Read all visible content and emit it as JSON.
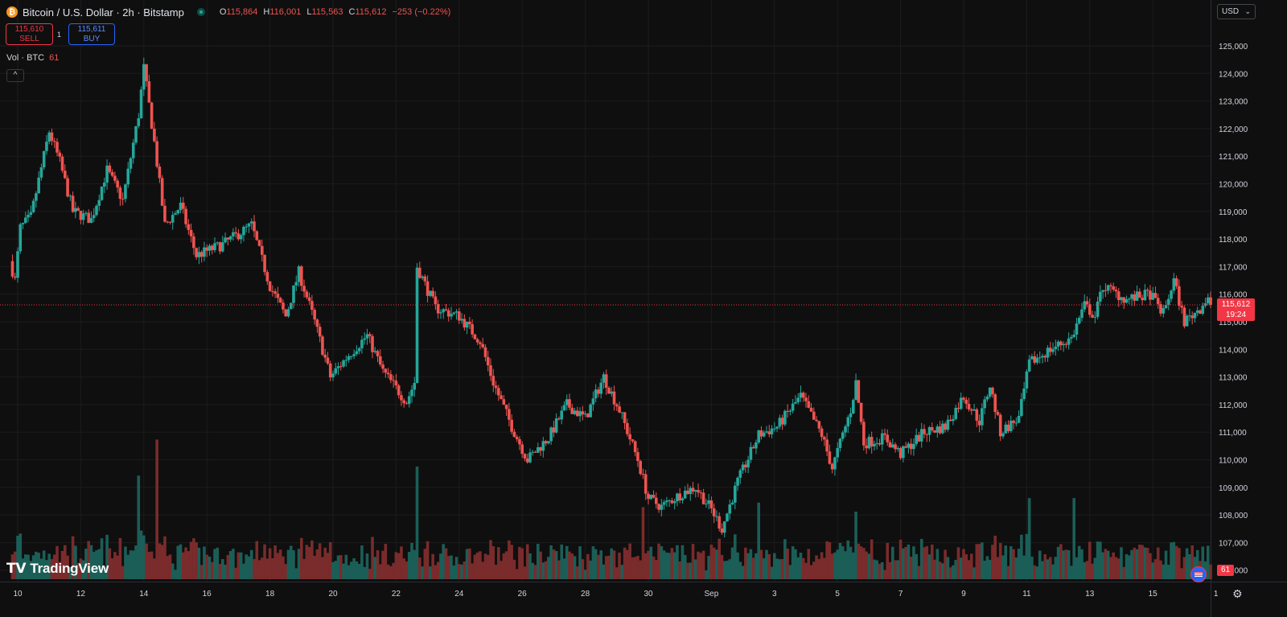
{
  "header": {
    "coin_symbol": "₿",
    "title": "Bitcoin / U.S. Dollar · 2h · Bitstamp",
    "ohlc": {
      "o_label": "O",
      "o": "115,864",
      "h_label": "H",
      "h": "116,001",
      "l_label": "L",
      "l": "115,563",
      "c_label": "C",
      "c": "115,612",
      "change": "−253 (−0.22%)"
    }
  },
  "trade": {
    "sell_price": "115,610",
    "sell_label": "SELL",
    "spread": "1",
    "buy_price": "115,611",
    "buy_label": "BUY"
  },
  "volume_legend": {
    "label": "Vol · BTC",
    "value": "61"
  },
  "collapse_icon": "^",
  "currency": {
    "label": "USD",
    "chevron": "⌄"
  },
  "logo": {
    "mark": "𝗧𝗩",
    "text": "TradingView"
  },
  "last_price": {
    "price": "115,612",
    "countdown": "19:24"
  },
  "volume_tag": "61",
  "settings_icon": "⚙",
  "colors": {
    "up": "#26a69a",
    "down": "#ef5350",
    "up_volume": "#1b5e57",
    "down_volume": "#7a2b2b",
    "grid": "#1c1c1c",
    "last_price_line": "#f23645"
  },
  "chart_data": {
    "type": "candlestick",
    "interval": "2h",
    "ylim": [
      106000,
      125700
    ],
    "y_ticks": [
      "125,000",
      "124,000",
      "123,000",
      "122,000",
      "121,000",
      "120,000",
      "119,000",
      "118,000",
      "117,000",
      "116,000",
      "115,000",
      "114,000",
      "113,000",
      "112,000",
      "111,000",
      "110,000",
      "109,000",
      "108,000",
      "107,000",
      "106,000"
    ],
    "x_ticks": [
      "10",
      "12",
      "14",
      "16",
      "18",
      "20",
      "22",
      "24",
      "26",
      "28",
      "30",
      "Sep",
      "3",
      "5",
      "7",
      "9",
      "11",
      "13",
      "15",
      "1"
    ],
    "last_price": 115612,
    "close_path": [
      {
        "date": "Aug 9 18:00",
        "close": 117200
      },
      {
        "date": "Aug 9 22:00",
        "close": 116500
      },
      {
        "date": "Aug 10 02:00",
        "close": 118400
      },
      {
        "date": "Aug 10 10:00",
        "close": 118800
      },
      {
        "date": "Aug 11 00:00",
        "close": 121900
      },
      {
        "date": "Aug 11 08:00",
        "close": 120800
      },
      {
        "date": "Aug 11 18:00",
        "close": 119000
      },
      {
        "date": "Aug 12 08:00",
        "close": 118700
      },
      {
        "date": "Aug 12 20:00",
        "close": 120500
      },
      {
        "date": "Aug 13 08:00",
        "close": 119400
      },
      {
        "date": "Aug 13 20:00",
        "close": 122500
      },
      {
        "date": "Aug 14 00:00",
        "close": 124200
      },
      {
        "date": "Aug 14 08:00",
        "close": 121500
      },
      {
        "date": "Aug 14 16:00",
        "close": 118500
      },
      {
        "date": "Aug 15 04:00",
        "close": 119200
      },
      {
        "date": "Aug 15 16:00",
        "close": 117400
      },
      {
        "date": "Aug 16 12:00",
        "close": 117800
      },
      {
        "date": "Aug 17 10:00",
        "close": 118500
      },
      {
        "date": "Aug 18 00:00",
        "close": 116300
      },
      {
        "date": "Aug 18 12:00",
        "close": 115200
      },
      {
        "date": "Aug 18 22:00",
        "close": 116800
      },
      {
        "date": "Aug 19 10:00",
        "close": 115000
      },
      {
        "date": "Aug 19 22:00",
        "close": 113000
      },
      {
        "date": "Aug 20 12:00",
        "close": 113800
      },
      {
        "date": "Aug 21 02:00",
        "close": 114500
      },
      {
        "date": "Aug 21 14:00",
        "close": 113200
      },
      {
        "date": "Aug 22 08:00",
        "close": 112100
      },
      {
        "date": "Aug 22 14:00",
        "close": 112800
      },
      {
        "date": "Aug 22 16:00",
        "close": 117000
      },
      {
        "date": "Aug 23 06:00",
        "close": 115500
      },
      {
        "date": "Aug 24 00:00",
        "close": 115200
      },
      {
        "date": "Aug 24 16:00",
        "close": 114300
      },
      {
        "date": "Aug 25 02:00",
        "close": 112800
      },
      {
        "date": "Aug 25 16:00",
        "close": 111200
      },
      {
        "date": "Aug 26 04:00",
        "close": 110000
      },
      {
        "date": "Aug 26 20:00",
        "close": 110800
      },
      {
        "date": "Aug 27 10:00",
        "close": 112000
      },
      {
        "date": "Aug 28 00:00",
        "close": 111500
      },
      {
        "date": "Aug 28 14:00",
        "close": 113000
      },
      {
        "date": "Aug 29 02:00",
        "close": 111800
      },
      {
        "date": "Aug 29 16:00",
        "close": 110000
      },
      {
        "date": "Aug 30 00:00",
        "close": 108600
      },
      {
        "date": "Aug 30 10:00",
        "close": 108300
      },
      {
        "date": "Aug 31 02:00",
        "close": 108800
      },
      {
        "date": "Aug 31 12:00",
        "close": 109000
      },
      {
        "date": "Sep 1 00:00",
        "close": 108200
      },
      {
        "date": "Sep 1 08:00",
        "close": 107500
      },
      {
        "date": "Sep 1 20:00",
        "close": 109200
      },
      {
        "date": "Sep 2 12:00",
        "close": 110900
      },
      {
        "date": "Sep 3 02:00",
        "close": 111200
      },
      {
        "date": "Sep 3 20:00",
        "close": 112300
      },
      {
        "date": "Sep 4 12:00",
        "close": 110900
      },
      {
        "date": "Sep 4 20:00",
        "close": 109700
      },
      {
        "date": "Sep 5 10:00",
        "close": 111800
      },
      {
        "date": "Sep 5 14:00",
        "close": 112800
      },
      {
        "date": "Sep 5 20:00",
        "close": 110600
      },
      {
        "date": "Sep 6 12:00",
        "close": 110800
      },
      {
        "date": "Sep 7 00:00",
        "close": 110200
      },
      {
        "date": "Sep 7 18:00",
        "close": 111000
      },
      {
        "date": "Sep 8 10:00",
        "close": 111200
      },
      {
        "date": "Sep 9 00:00",
        "close": 112300
      },
      {
        "date": "Sep 9 12:00",
        "close": 111400
      },
      {
        "date": "Sep 9 20:00",
        "close": 112700
      },
      {
        "date": "Sep 10 04:00",
        "close": 111000
      },
      {
        "date": "Sep 10 18:00",
        "close": 111500
      },
      {
        "date": "Sep 11 02:00",
        "close": 113500
      },
      {
        "date": "Sep 11 18:00",
        "close": 114000
      },
      {
        "date": "Sep 12 10:00",
        "close": 114400
      },
      {
        "date": "Sep 12 20:00",
        "close": 115600
      },
      {
        "date": "Sep 13 04:00",
        "close": 115200
      },
      {
        "date": "Sep 13 10:00",
        "close": 116300
      },
      {
        "date": "Sep 14 04:00",
        "close": 115800
      },
      {
        "date": "Sep 14 22:00",
        "close": 116000
      },
      {
        "date": "Sep 15 08:00",
        "close": 115300
      },
      {
        "date": "Sep 15 16:00",
        "close": 116500
      },
      {
        "date": "Sep 16 00:00",
        "close": 115000
      },
      {
        "date": "Sep 16 12:00",
        "close": 115500
      },
      {
        "date": "Sep 16 18:00",
        "close": 115900
      },
      {
        "date": "Sep 16 20:00",
        "close": 115612
      }
    ],
    "volume_spikes": [
      {
        "date": "Aug 13 20:00",
        "btc": 230
      },
      {
        "date": "Aug 14 10:00",
        "btc": 310
      },
      {
        "date": "Aug 22 16:00",
        "btc": 250
      },
      {
        "date": "Aug 29 20:00",
        "btc": 160
      },
      {
        "date": "Sep 2 12:00",
        "btc": 170
      },
      {
        "date": "Sep 5 14:00",
        "btc": 150
      },
      {
        "date": "Sep 11 02:00",
        "btc": 180
      },
      {
        "date": "Sep 12 12:00",
        "btc": 180
      }
    ]
  }
}
